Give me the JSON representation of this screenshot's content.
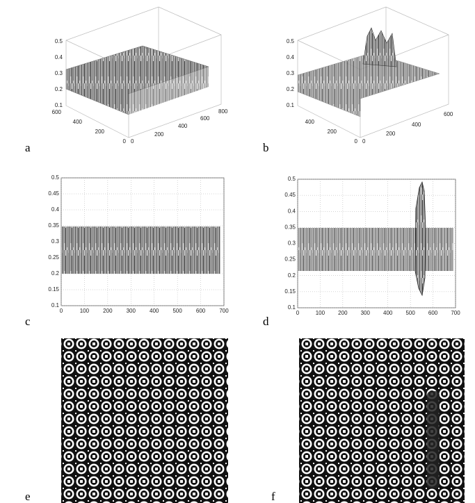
{
  "panels": [
    {
      "label": "a",
      "z_ticks": [
        0.1,
        0.2,
        0.3,
        0.4,
        0.5
      ],
      "y_ticks": [
        0,
        200,
        400,
        600
      ],
      "x_ticks": [
        0,
        200,
        400,
        600,
        800
      ]
    },
    {
      "label": "b",
      "z_ticks": [
        0.1,
        0.2,
        0.3,
        0.4,
        0.5
      ],
      "y_ticks": [
        0,
        200,
        400
      ],
      "x_ticks": [
        0,
        200,
        400,
        600
      ]
    },
    {
      "label": "c",
      "xlim": [
        0,
        700
      ],
      "ylim": [
        0.1,
        0.5
      ],
      "xticks": [
        0,
        100,
        200,
        300,
        400,
        500,
        600,
        700
      ],
      "yticks": [
        0.1,
        0.15,
        0.2,
        0.25,
        0.3,
        0.35,
        0.4,
        0.45,
        0.5
      ]
    },
    {
      "label": "d",
      "xlim": [
        0,
        700
      ],
      "ylim": [
        0.1,
        0.5
      ],
      "xticks": [
        0,
        100,
        200,
        300,
        400,
        500,
        600,
        700
      ],
      "yticks": [
        0.1,
        0.15,
        0.2,
        0.25,
        0.3,
        0.35,
        0.4,
        0.45,
        0.5
      ]
    },
    {
      "label": "e"
    },
    {
      "label": "f"
    }
  ]
}
